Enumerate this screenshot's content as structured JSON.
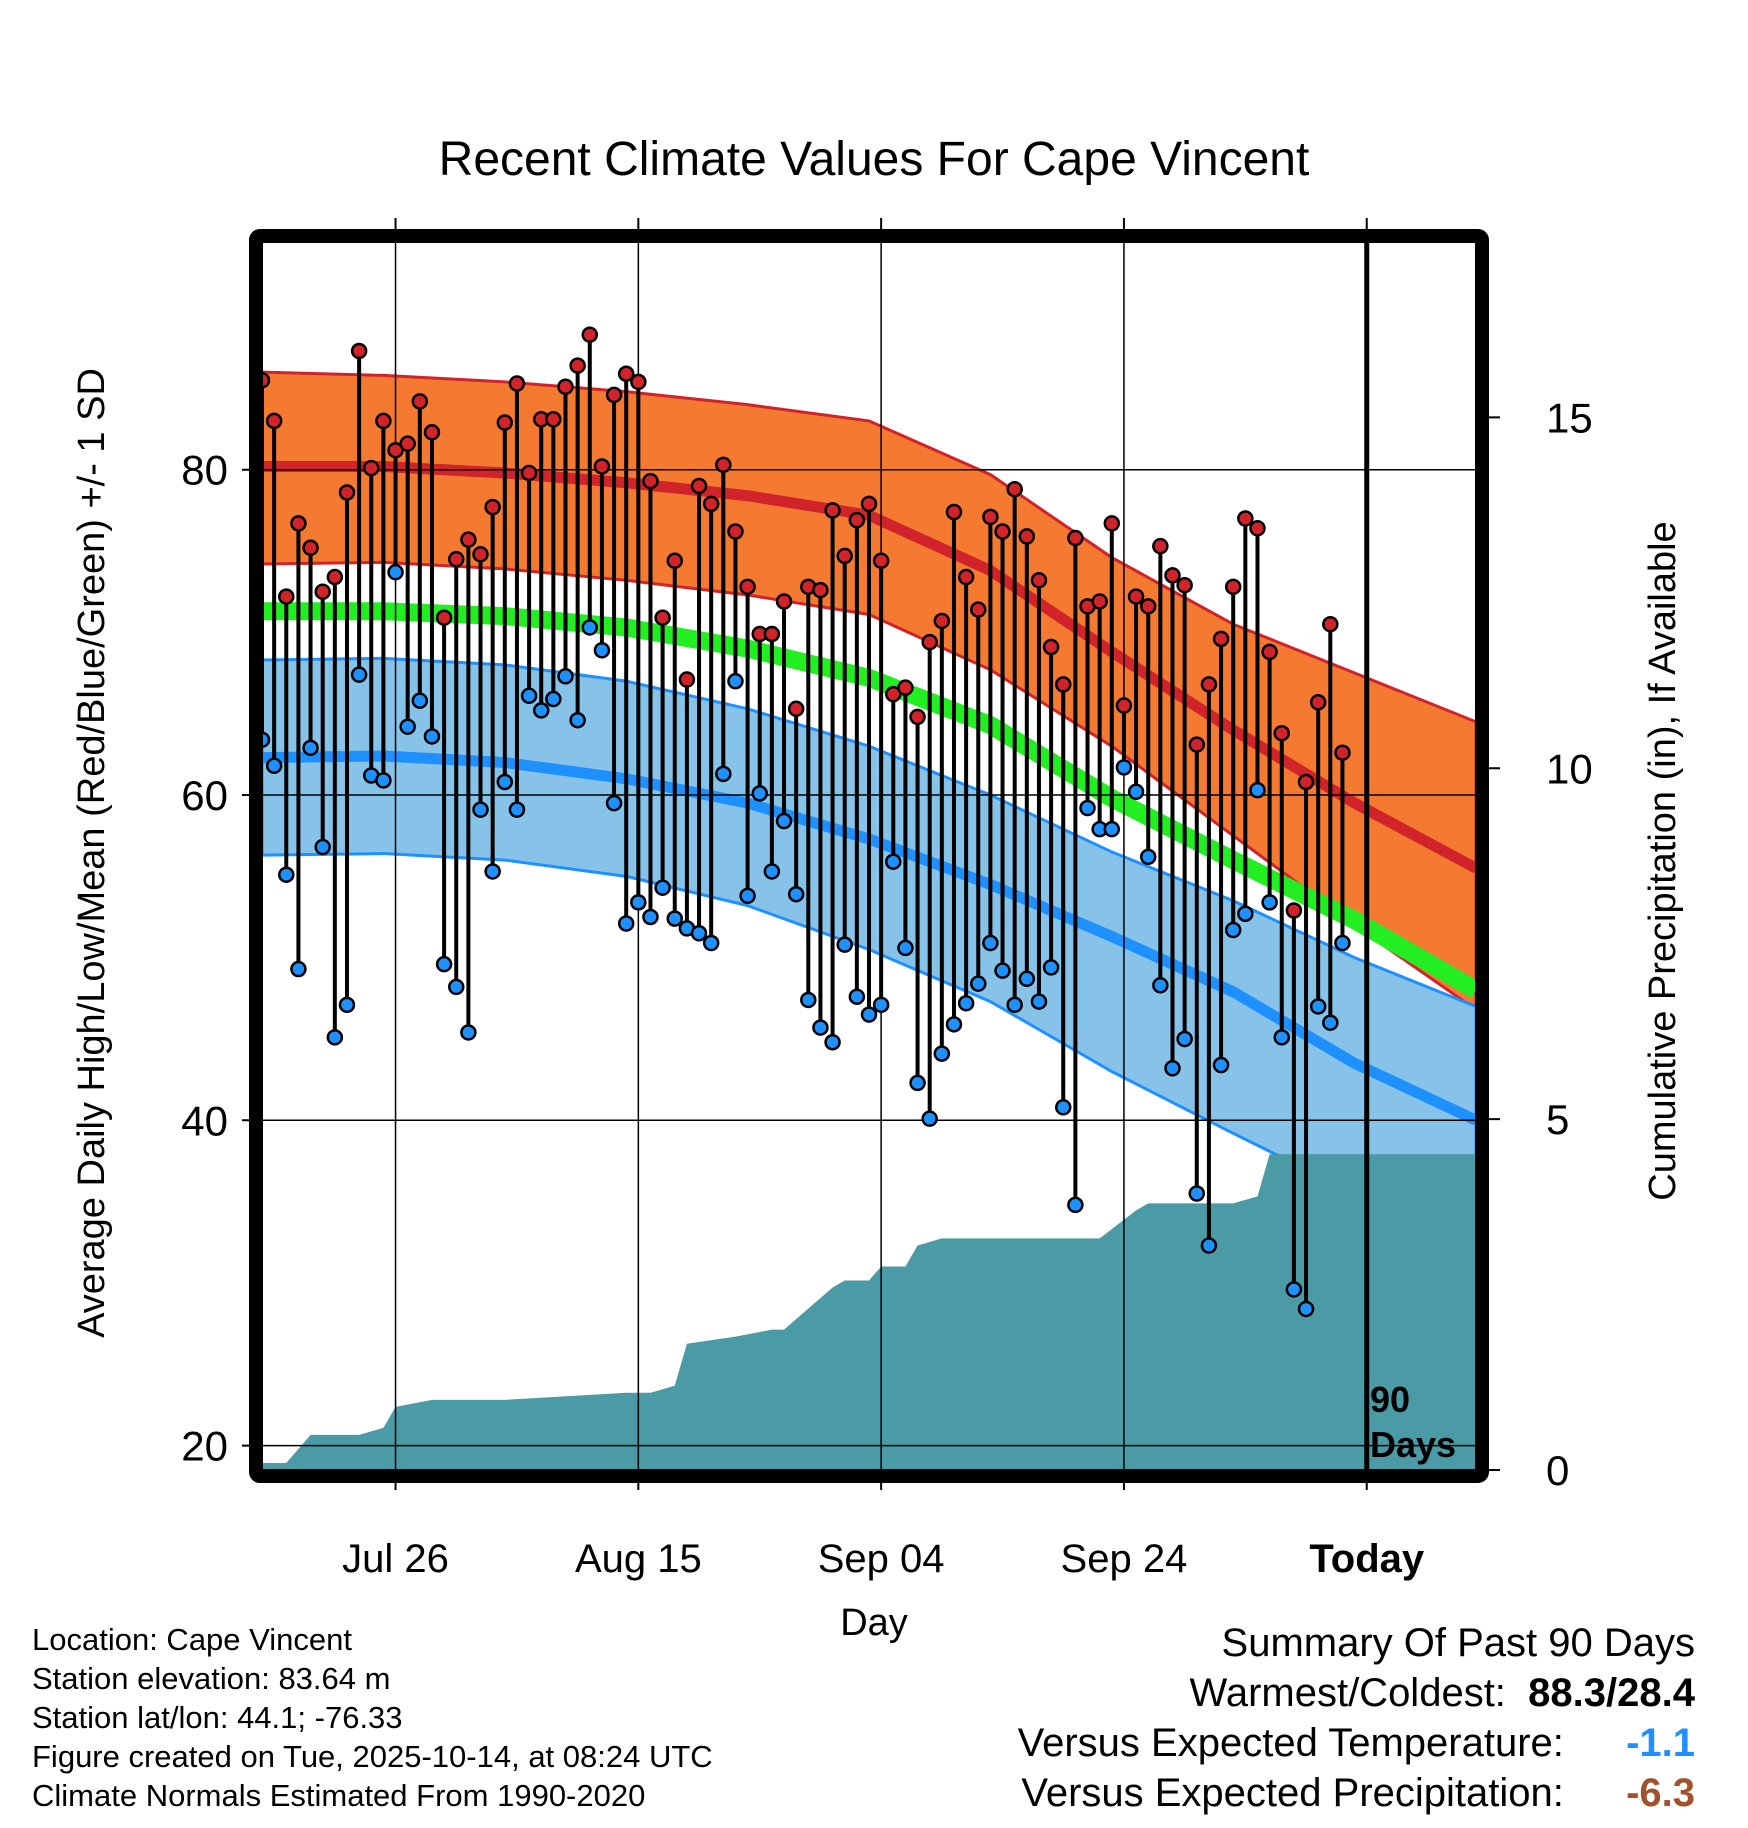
{
  "chart_data": {
    "type": "line",
    "title": "Recent Climate Values For Cape Vincent",
    "xlabel": "Day",
    "ylabel": "Average Daily High/Low/Mean (Red/Blue/Green) +/- 1 SD",
    "y2label": "Cumulative Precipitation (in), If Available",
    "ylim": [
      18.5,
      94
    ],
    "y2lim": [
      0,
      17.5
    ],
    "xlim": [
      0,
      100
    ],
    "yticks": [
      20,
      40,
      60,
      80
    ],
    "y2ticks": [
      0,
      5,
      10,
      15
    ],
    "xticks": [
      {
        "day": 11,
        "label": "Jul 26"
      },
      {
        "day": 31,
        "label": "Aug 15"
      },
      {
        "day": 51,
        "label": "Sep 04"
      },
      {
        "day": 71,
        "label": "Sep 24"
      },
      {
        "day": 91,
        "label": "Today"
      }
    ],
    "today_day": 91,
    "period_label_1": "90",
    "period_label_2": "Days",
    "normal_days": [
      0,
      10,
      20,
      30,
      40,
      50,
      60,
      70,
      80,
      90,
      100
    ],
    "normal_high": [
      80.2,
      80.2,
      79.8,
      79.2,
      78.4,
      77.2,
      73.8,
      68.8,
      64.0,
      59.5,
      55.5
    ],
    "high_sd_upper": [
      86.0,
      85.8,
      85.4,
      84.8,
      84.0,
      83.0,
      79.7,
      74.6,
      70.5,
      67.5,
      64.5
    ],
    "high_sd_lower": [
      74.2,
      74.3,
      73.9,
      73.2,
      72.3,
      71.1,
      67.7,
      63.0,
      57.5,
      52.0,
      46.8
    ],
    "normal_low": [
      62.3,
      62.4,
      62.0,
      61.0,
      59.5,
      57.3,
      54.5,
      51.3,
      47.9,
      43.5,
      40.0
    ],
    "low_sd_upper": [
      68.3,
      68.4,
      68.0,
      67.0,
      65.3,
      63.0,
      60.0,
      56.5,
      53.5,
      50.0,
      47.0
    ],
    "low_sd_lower": [
      56.3,
      56.4,
      56.0,
      55.0,
      53.2,
      50.5,
      47.3,
      43.0,
      39.2,
      35.5,
      32.3
    ],
    "normal_mean": [
      71.3,
      71.3,
      71.0,
      70.3,
      69.0,
      67.2,
      64.3,
      59.8,
      56.0,
      52.3,
      48.0
    ],
    "series": [
      {
        "name": "Daily High",
        "values": [
          85.5,
          83.0,
          72.2,
          76.7,
          75.2,
          72.5,
          73.4,
          78.6,
          87.3,
          80.1,
          83.0,
          81.2,
          81.6,
          84.2,
          82.3,
          70.9,
          74.5,
          75.7,
          74.8,
          77.7,
          82.9,
          85.3,
          79.8,
          83.1,
          83.1,
          85.1,
          86.4,
          88.3,
          80.2,
          84.6,
          85.9,
          85.4,
          79.3,
          70.9,
          74.4,
          67.1,
          79.0,
          77.9,
          80.3,
          76.2,
          72.8,
          69.9,
          69.9,
          71.9,
          65.3,
          72.8,
          72.6,
          77.5,
          74.7,
          76.9,
          77.9,
          74.4,
          66.2,
          66.6,
          64.8,
          69.4,
          70.7,
          77.4,
          73.4,
          71.4,
          77.1,
          76.2,
          78.8,
          75.9,
          73.2,
          69.1,
          66.8,
          75.8,
          71.6,
          71.9,
          76.7,
          65.5,
          72.2,
          71.6,
          75.3,
          73.5,
          72.9,
          63.1,
          66.8,
          69.6,
          72.8,
          77.0,
          76.4,
          68.8,
          63.8,
          52.9,
          60.8,
          65.7,
          70.5,
          62.6
        ]
      },
      {
        "name": "Daily Low",
        "values": [
          63.4,
          61.8,
          55.1,
          49.3,
          62.9,
          56.8,
          45.1,
          47.1,
          67.4,
          61.2,
          60.9,
          73.7,
          64.2,
          65.8,
          63.6,
          49.6,
          48.2,
          45.4,
          59.1,
          55.3,
          60.8,
          59.1,
          66.1,
          65.2,
          65.9,
          67.3,
          64.6,
          70.3,
          68.9,
          59.5,
          52.1,
          53.4,
          52.5,
          54.3,
          52.4,
          51.8,
          51.5,
          50.9,
          61.3,
          67.0,
          53.8,
          60.1,
          55.3,
          58.4,
          53.9,
          47.4,
          45.7,
          44.8,
          50.8,
          47.6,
          46.5,
          47.1,
          55.9,
          50.6,
          42.3,
          40.1,
          44.1,
          45.9,
          47.2,
          48.4,
          50.9,
          49.2,
          47.1,
          48.7,
          47.3,
          49.4,
          40.8,
          34.8,
          59.2,
          57.9,
          57.9,
          61.7,
          60.2,
          56.2,
          48.3,
          43.2,
          45.0,
          35.5,
          32.3,
          43.4,
          51.7,
          52.7,
          60.3,
          53.4,
          45.1,
          29.6,
          28.4,
          47.0,
          46.0,
          50.9
        ]
      },
      {
        "name": "Cumulative Precipitation",
        "days": [
          0,
          2,
          4,
          8,
          10,
          11,
          14,
          20,
          30,
          32,
          34,
          35,
          39,
          42,
          43,
          47,
          48,
          50,
          51,
          53,
          54,
          56,
          66,
          67,
          69,
          72,
          73,
          79,
          80,
          82,
          83,
          90,
          91,
          100
        ],
        "values": [
          0.1,
          0.1,
          0.5,
          0.5,
          0.6,
          0.9,
          1.0,
          1.0,
          1.1,
          1.1,
          1.2,
          1.8,
          1.9,
          2.0,
          2.0,
          2.6,
          2.7,
          2.7,
          2.9,
          2.9,
          3.2,
          3.3,
          3.3,
          3.3,
          3.3,
          3.7,
          3.8,
          3.8,
          3.8,
          3.9,
          4.5,
          4.5,
          4.5,
          4.5
        ]
      }
    ]
  },
  "info": {
    "location": "Location: Cape Vincent",
    "elevation": "Station elevation: 83.64 m",
    "latlon": "Station lat/lon: 44.1; -76.33",
    "created": "Figure created on Tue, 2025-10-14, at 08:24 UTC",
    "normals": "Climate Normals Estimated From 1990-2020"
  },
  "summary": {
    "title": "Summary Of Past 90 Days",
    "warm_cold_label": "Warmest/Coldest:",
    "warmest": "88.3",
    "separator": "/",
    "coldest": "28.4",
    "temp_label": "Versus Expected Temperature:",
    "temp_value": "-1.1",
    "precip_label": "Versus Expected Precipitation:",
    "precip_value": "-6.3"
  },
  "colors": {
    "high_band": "#F47A31",
    "high_line": "#D0232A",
    "low_band": "#87C3E8",
    "low_line": "#1E90FF",
    "mean_line": "#22EE22",
    "precip": "#4A9BA5",
    "temp_value": "#1E90FF",
    "precip_value": "#A0522D"
  }
}
